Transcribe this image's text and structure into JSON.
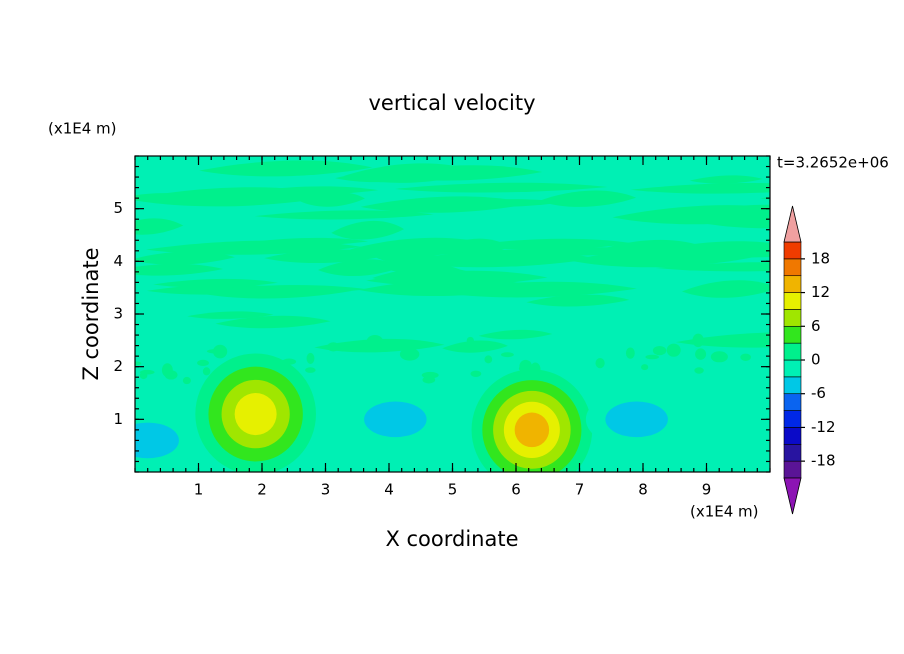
{
  "chart_data": {
    "type": "contour",
    "title": "vertical velocity",
    "xlabel": "X coordinate",
    "ylabel": "Z coordinate",
    "x_unit": "(x1E4 m)",
    "y_unit": "(x1E4 m)",
    "time_label": "t=3.2652e+06",
    "xlim": [
      0,
      10
    ],
    "ylim": [
      0,
      6
    ],
    "xticks": [
      1,
      2,
      3,
      4,
      5,
      6,
      7,
      8,
      9
    ],
    "yticks": [
      1,
      2,
      3,
      4,
      5
    ],
    "colorbar": {
      "levels": [
        -21,
        -18,
        -15,
        -12,
        -9,
        -6,
        -3,
        0,
        3,
        6,
        9,
        12,
        15,
        18,
        21
      ],
      "colors": [
        "#5a1496",
        "#2814a0",
        "#0a0ac8",
        "#0028e6",
        "#0a64f0",
        "#00c8e6",
        "#00f0b4",
        "#00f08c",
        "#32e61e",
        "#a0e600",
        "#e6f000",
        "#f0b400",
        "#f07800",
        "#f03c00"
      ],
      "under_color": "#8c14b4",
      "over_color": "#f0a0a0",
      "ticks": [
        -18,
        -12,
        -6,
        0,
        6,
        12,
        18
      ]
    },
    "features": [
      {
        "x": 1.9,
        "z": 1.1,
        "value": 10
      },
      {
        "x": 6.25,
        "z": 0.8,
        "value": 12
      },
      {
        "x": 4.1,
        "z": 1.0,
        "value": -4
      },
      {
        "x": 7.9,
        "z": 1.0,
        "value": -4
      },
      {
        "x": 0.2,
        "z": 0.6,
        "value": -4
      }
    ]
  }
}
